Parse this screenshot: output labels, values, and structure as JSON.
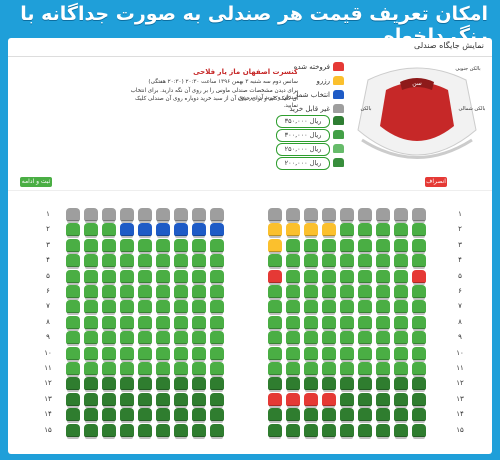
{
  "banner": {
    "title": "امکان تعریف قیمت هر صندلی به صورت جداگانه با رنگ دلخواه"
  },
  "card": {
    "title": "نمایش جایگاه صندلی"
  },
  "legend": [
    {
      "label": "فروخته شده",
      "color": "#e53935"
    },
    {
      "label": "رزرو",
      "color": "#fbc02d"
    },
    {
      "label": "انتخاب شما",
      "color": "#1e5bc6"
    },
    {
      "label": "غیر قابل خرید",
      "color": "#9e9e9e"
    }
  ],
  "prices": [
    "۳۵۰,۰۰۰ ریال",
    "۳۰۰,۰۰۰ ریال",
    "۲۵۰,۰۰۰ ریال",
    "۲۰۰,۰۰۰ ریال"
  ],
  "event": {
    "title": "کنسرت اصفهان ماز یار فلاحی",
    "schedule": "سانس دوم سه شنبه ۳ بهمن ۱۳۹۶ ساعت ۲۰:۳۰ (۲۰:۳۰ هفتگی)",
    "instructions_1": "برای دیدن مشخصات صندلی ماوس را بر روی آن نگه دارید. برای انتخاب صندلی و خرید آن، بر روی",
    "instructions_2": "آن کلیک کنید و برای حذف آن از سبد خرید دوباره روی آن صندلی کلیک نمایید."
  },
  "map": {
    "stage_label": "سن",
    "section_labels": [
      "بالکن جنوبی",
      "بالکن شمالی",
      "بالکن"
    ]
  },
  "buttons": {
    "confirm": "ثبت و ادامه",
    "cancel": "انصراف"
  },
  "rows": [
    "۱",
    "۲",
    "۳",
    "۴",
    "۵",
    "۶",
    "۷",
    "۸",
    "۹",
    "۱۰",
    "۱۱",
    "۱۲",
    "۱۳",
    "۱۴",
    "۱۵"
  ],
  "colors": {
    "available": "#4aae44",
    "available_dark": "#2f7d2f",
    "unavailable": "#9e9e9e",
    "sold": "#e53935",
    "reserved": "#fbc02d",
    "selected": "#1e5bc6",
    "banner": "#1f9fd9"
  }
}
